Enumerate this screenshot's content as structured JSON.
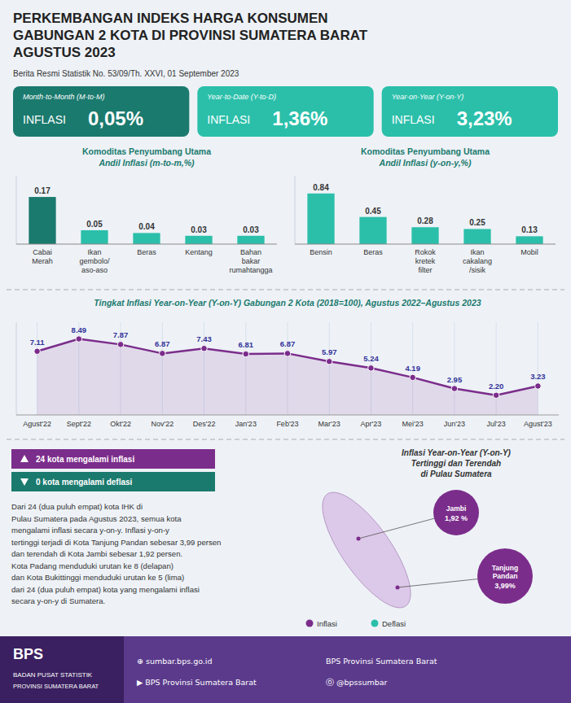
{
  "title": [
    "PERKEMBANGAN INDEKS HARGA KONSUMEN",
    "GABUNGAN 2 KOTA DI PROVINSI SUMATERA BARAT",
    "AGUSTUS 2023"
  ],
  "subtitle": "Berita Resmi Statistik No. 53/09/Th. XXVI, 01 September 2023",
  "indicators": [
    {
      "label": "Month-to-Month (M-to-M)",
      "name": "INFLASI",
      "value": 0.05,
      "value_label": "0,05%",
      "color": "#1B7A6E"
    },
    {
      "label": "Year-to-Date (Y-to-D)",
      "name": "INFLASI",
      "value": 1.36,
      "value_label": "1,36%",
      "color": "#2BBFAA"
    },
    {
      "label": "Year-on-Year (Y-on-Y)",
      "name": "INFLASI",
      "value": 3.23,
      "value_label": "3,23%",
      "color": "#2BBFAA"
    }
  ],
  "chart_data": [
    {
      "type": "bar",
      "title": "Komoditas Penyumbang Utama",
      "subtitle": "Andil Inflasi (m-to-m,%)",
      "categories": [
        "Cabai\nMerah",
        "Ikan\ngembolo/\naso-aso",
        "Beras",
        "Kentang",
        "Bahan\nbakar\nrumahtangga"
      ],
      "values": [
        0.17,
        0.05,
        0.04,
        0.03,
        0.03
      ],
      "value_labels": [
        "0.17",
        "0.05",
        "0.04",
        "0.03",
        "0.03"
      ],
      "colors": [
        "#1B7A6E",
        "#2BBFAA",
        "#2BBFAA",
        "#2BBFAA",
        "#2BBFAA"
      ],
      "ylim": [
        0,
        0.2465
      ],
      "yticks": [],
      "grid": false,
      "tick_labels": "x",
      "data_labels": true
    },
    {
      "type": "bar",
      "title": "Komoditas Penyumbang Utama",
      "subtitle": "Andil Inflasi (y-on-y,%)",
      "categories": [
        "Bensin",
        "Beras",
        "Rokok\nkretek\nfilter",
        "Ikan\ncakalang\n/sisik",
        "Mobil"
      ],
      "values": [
        0.84,
        0.45,
        0.28,
        0.25,
        0.13
      ],
      "value_labels": [
        "0.84",
        "0.45",
        "0.28",
        "0.25",
        "0.13"
      ],
      "color": "#2BBFAA",
      "ylim": [
        0,
        1.134
      ],
      "yticks": [],
      "grid": false,
      "tick_labels": "x",
      "data_labels": true
    },
    {
      "type": "line",
      "title": "Tingkat Inflasi Year-on-Year (Y-on-Y) Gabungan 2 Kota (2018=100), Agustus 2022–Agustus 2023",
      "categories": [
        "Agust'22",
        "Sept'22",
        "Okt'22",
        "Nov'22",
        "Des'22",
        "Jan'23",
        "Feb'23",
        "Mar'23",
        "Apr'23",
        "Mei'23",
        "Jun'23",
        "Jul'23",
        "Agust'23"
      ],
      "values": [
        7.11,
        8.49,
        7.87,
        6.87,
        7.43,
        6.81,
        6.87,
        5.97,
        5.24,
        4.19,
        2.95,
        2.2,
        3.23
      ],
      "value_labels": [
        "7.11",
        "8.49",
        "7.87",
        "6.87",
        "7.43",
        "6.81",
        "6.87",
        "5.97",
        "5.24",
        "4.19",
        "2.95",
        "2.20",
        "3.23"
      ],
      "color": "#7B2D8B",
      "marker": "circle",
      "ylim": [
        0,
        10.3578
      ],
      "yticks": [],
      "grid": true,
      "tick_labels": "x",
      "data_labels": true
    }
  ],
  "counts": [
    {
      "text": "24 kota mengalami inflasi",
      "color": "#7B2D8B",
      "marker": "triangle-up"
    },
    {
      "text": "0 kota mengalami deflasi",
      "color": "#1B7A6E",
      "marker": "triangle-down"
    }
  ],
  "description": "Dari 24 (dua puluh empat) kota IHK di\nPulau Sumatera pada Agustus 2023, semua kota\nmengalami inflasi secara y-on-y. Inflasi y-on-y\ntertinggi terjadi di Kota Tanjung Pandan sebesar 3,99 persen\ndan terendah di Kota Jambi sebesar 1,92 persen.\nKota Padang menduduki urutan ke 8 (delapan)\ndan Kota Bukittinggi menduduki urutan ke 5 (lima)\ndari 24 (dua puluh empat) kota yang mengalami inflasi\nsecara y-on-y di Sumatera.",
  "map": {
    "title": "Inflasi Year-on-Year (Y-on-Y)\nTertinggi dan Terendah\ndi Pulau Sumatera",
    "color": "#7B2D8B",
    "annotations": [
      {
        "name": "Jambi",
        "value": 1.92,
        "label": "1,92 %"
      },
      {
        "name": "Tanjung\nPandan",
        "value": 3.99,
        "label": "3,99%"
      }
    ],
    "keys": [
      {
        "name": "Inflasi",
        "color": "#7B2D8B"
      },
      {
        "name": "Deflasi",
        "color": "#2BBFAA"
      }
    ]
  },
  "footer": {
    "brand": [
      "BPS",
      "BADAN PUSAT STATISTIK",
      "PROVINSI SUMATERA BARAT"
    ],
    "links": [
      "⊕ sumbar.bps.go.id",
      "BPS Provinsi Sumatera Barat",
      "▶  BPS Provinsi Sumatera Barat",
      "ⓞ @bpssumbar"
    ],
    "colors": [
      "#5B3A8C",
      "#3A2060"
    ]
  }
}
